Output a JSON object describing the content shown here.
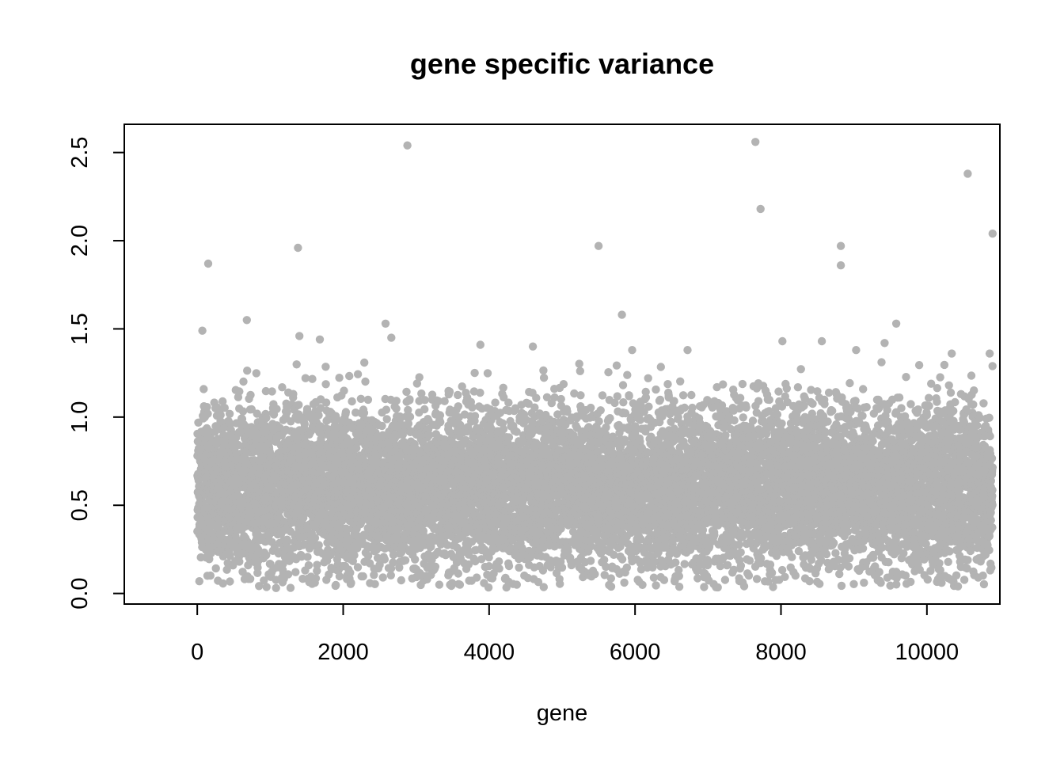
{
  "chart_data": {
    "type": "scatter",
    "title": "gene specific variance",
    "xlabel": "gene",
    "ylabel": "",
    "xlim": [
      -1000,
      11000
    ],
    "ylim": [
      -0.06,
      2.66
    ],
    "x_ticks": [
      0,
      2000,
      4000,
      6000,
      8000,
      10000
    ],
    "x_tick_labels": [
      "0",
      "2000",
      "4000",
      "6000",
      "8000",
      "10000"
    ],
    "y_ticks": [
      0.0,
      0.5,
      1.0,
      1.5,
      2.0,
      2.5
    ],
    "y_tick_labels": [
      "0.0",
      "0.5",
      "1.0",
      "1.5",
      "2.0",
      "2.5"
    ],
    "point_color": "#b3b3b3",
    "n_genes": 10900,
    "bulk_distribution": {
      "x_range": [
        1,
        10900
      ],
      "y_range": [
        0.03,
        1.32
      ],
      "median": 0.6
    },
    "outliers": [
      {
        "x": 150,
        "y": 1.87
      },
      {
        "x": 70,
        "y": 1.49
      },
      {
        "x": 680,
        "y": 1.55
      },
      {
        "x": 1380,
        "y": 1.96
      },
      {
        "x": 1400,
        "y": 1.46
      },
      {
        "x": 1680,
        "y": 1.44
      },
      {
        "x": 2580,
        "y": 1.53
      },
      {
        "x": 2660,
        "y": 1.45
      },
      {
        "x": 2880,
        "y": 2.54
      },
      {
        "x": 3880,
        "y": 1.41
      },
      {
        "x": 4600,
        "y": 1.4
      },
      {
        "x": 5500,
        "y": 1.97
      },
      {
        "x": 5820,
        "y": 1.58
      },
      {
        "x": 5960,
        "y": 1.38
      },
      {
        "x": 6720,
        "y": 1.38
      },
      {
        "x": 7650,
        "y": 2.56
      },
      {
        "x": 7720,
        "y": 2.18
      },
      {
        "x": 8020,
        "y": 1.43
      },
      {
        "x": 8560,
        "y": 1.43
      },
      {
        "x": 8820,
        "y": 1.97
      },
      {
        "x": 8820,
        "y": 1.86
      },
      {
        "x": 9030,
        "y": 1.38
      },
      {
        "x": 9420,
        "y": 1.42
      },
      {
        "x": 9580,
        "y": 1.53
      },
      {
        "x": 10340,
        "y": 1.36
      },
      {
        "x": 10560,
        "y": 2.38
      },
      {
        "x": 10860,
        "y": 1.36
      },
      {
        "x": 10900,
        "y": 2.04
      }
    ]
  }
}
